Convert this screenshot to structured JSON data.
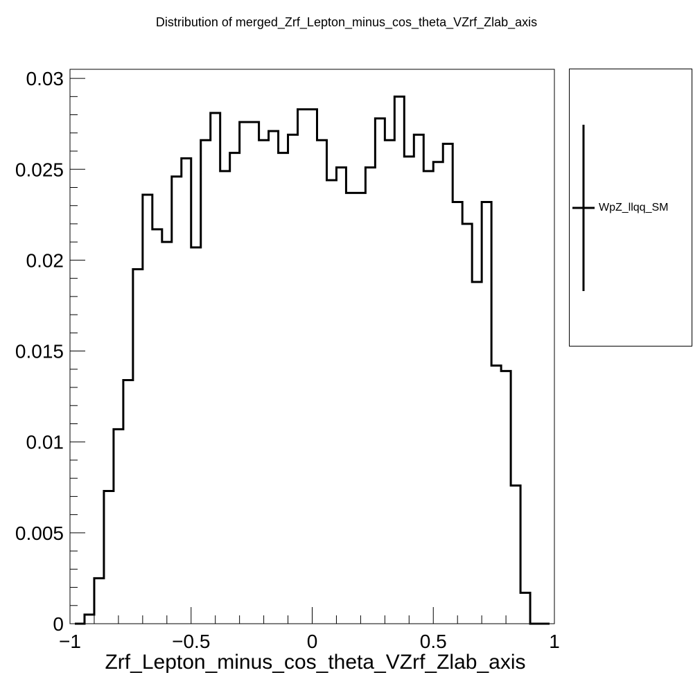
{
  "title": "Distribution of merged_Zrf_Lepton_minus_cos_theta_VZrf_Zlab_axis",
  "chart_data": {
    "type": "histogram",
    "title": "Distribution of merged_Zrf_Lepton_minus_cos_theta_VZrf_Zlab_axis",
    "xlabel": "Zrf_Lepton_minus_cos_theta_VZrf_Zlab_axis",
    "ylabel": "",
    "xlim": [
      -1.0,
      1.0
    ],
    "ylim": [
      0,
      0.0305
    ],
    "bin_edges": [
      -0.98,
      -0.94,
      -0.9,
      -0.86,
      -0.82,
      -0.78,
      -0.74,
      -0.7,
      -0.66,
      -0.62,
      -0.58,
      -0.54,
      -0.5,
      -0.46,
      -0.42,
      -0.38,
      -0.34,
      -0.3,
      -0.26,
      -0.22,
      -0.18,
      -0.14,
      -0.1,
      -0.06,
      -0.02,
      0.02,
      0.06,
      0.1,
      0.14,
      0.18,
      0.22,
      0.26,
      0.3,
      0.34,
      0.38,
      0.42,
      0.46,
      0.5,
      0.54,
      0.58,
      0.62,
      0.66,
      0.7,
      0.74,
      0.78,
      0.82,
      0.86,
      0.9,
      0.94,
      0.98
    ],
    "values": [
      0.0,
      0.0005,
      0.0025,
      0.0073,
      0.0107,
      0.0134,
      0.0195,
      0.0236,
      0.0217,
      0.021,
      0.0246,
      0.0256,
      0.0207,
      0.0266,
      0.0281,
      0.0249,
      0.0259,
      0.0276,
      0.0276,
      0.0266,
      0.0271,
      0.0259,
      0.0269,
      0.0283,
      0.0283,
      0.0266,
      0.0244,
      0.0251,
      0.0237,
      0.0237,
      0.0251,
      0.0278,
      0.0266,
      0.029,
      0.0257,
      0.0269,
      0.0249,
      0.0254,
      0.0264,
      0.0232,
      0.022,
      0.0188,
      0.0232,
      0.0142,
      0.0139,
      0.0076,
      0.0017,
      0.0,
      0.0
    ],
    "xticks": [
      -1.0,
      -0.5,
      0.0,
      0.5,
      1.0
    ],
    "xtick_labels": [
      "−1",
      "−0.5",
      "0",
      "0.5",
      "1"
    ],
    "yticks": [
      0,
      0.005,
      0.01,
      0.015,
      0.02,
      0.025,
      0.03
    ],
    "ytick_labels": [
      "0",
      "0.005",
      "0.01",
      "0.015",
      "0.02",
      "0.025",
      "0.03"
    ],
    "legend": {
      "entries": [
        "WpZ_llqq_SM"
      ],
      "placement": "right of plot"
    },
    "line_color": "#000000"
  }
}
